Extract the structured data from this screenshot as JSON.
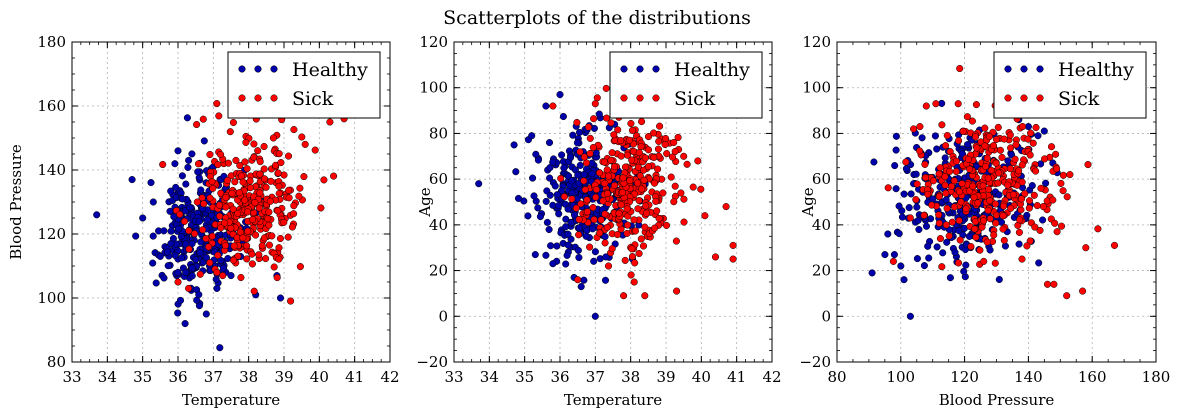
{
  "title": "Scatterplots of the distributions",
  "colors": {
    "healthy": "#0000aa",
    "sick": "#ff0000",
    "edge": "#000000"
  },
  "chart_data": [
    {
      "type": "scatter",
      "xlabel": "Temperature",
      "ylabel": "Blood Pressure",
      "xlim": [
        33,
        42
      ],
      "ylim": [
        80,
        180
      ],
      "xticks": [
        "33",
        "34",
        "35",
        "36",
        "37",
        "38",
        "39",
        "40",
        "41",
        "42"
      ],
      "yticks": [
        "80",
        "100",
        "120",
        "140",
        "160",
        "180"
      ],
      "grid": true,
      "legend": "top-right",
      "series": [
        {
          "name": "Healthy",
          "color": "#0000aa",
          "cluster": {
            "x_mean": 36.6,
            "x_sd": 0.62,
            "y_mean": 120,
            "y_sd": 10,
            "n": 300
          },
          "points": [
            [
              33.7,
              126
            ],
            [
              34.7,
              137
            ],
            [
              35.0,
              125
            ],
            [
              35.3,
              130
            ],
            [
              35.6,
              121
            ],
            [
              36.0,
              146
            ],
            [
              36.3,
              143
            ],
            [
              36.2,
              92
            ],
            [
              36.8,
              95
            ],
            [
              37.1,
              103
            ],
            [
              37.5,
              107
            ],
            [
              38.2,
              101
            ],
            [
              38.8,
              107
            ],
            [
              38.9,
              100
            ],
            [
              35.8,
              117
            ],
            [
              36.5,
              112
            ],
            [
              36.0,
              108
            ],
            [
              35.5,
              113
            ],
            [
              37.3,
              138
            ],
            [
              36.7,
              128
            ]
          ]
        },
        {
          "name": "Sick",
          "color": "#ff0000",
          "cluster": {
            "x_mean": 38.0,
            "x_sd": 0.75,
            "y_mean": 128,
            "y_sd": 11,
            "n": 330
          },
          "points": [
            [
              36.0,
              105
            ],
            [
              36.3,
              103
            ],
            [
              37.6,
              158
            ],
            [
              38.2,
              165
            ],
            [
              40.3,
              155
            ],
            [
              40.7,
              156
            ],
            [
              41.0,
              158
            ],
            [
              40.9,
              163
            ],
            [
              37.1,
              108
            ],
            [
              39.6,
              148
            ],
            [
              38.7,
              150
            ],
            [
              36.9,
              111
            ]
          ]
        }
      ]
    },
    {
      "type": "scatter",
      "xlabel": "Temperature",
      "ylabel": "Age",
      "xlim": [
        33,
        42
      ],
      "ylim": [
        -20,
        120
      ],
      "xticks": [
        "33",
        "34",
        "35",
        "36",
        "37",
        "38",
        "39",
        "40",
        "41",
        "42"
      ],
      "yticks": [
        "−20",
        "0",
        "20",
        "40",
        "60",
        "80",
        "100",
        "120"
      ],
      "grid": true,
      "legend": "top-right",
      "series": [
        {
          "name": "Healthy",
          "color": "#0000aa",
          "cluster": {
            "x_mean": 36.6,
            "x_sd": 0.62,
            "y_mean": 52,
            "y_sd": 14,
            "n": 300
          },
          "points": [
            [
              33.7,
              58
            ],
            [
              34.7,
              75
            ],
            [
              35.2,
              79
            ],
            [
              35.6,
              92
            ],
            [
              36.0,
              97
            ],
            [
              37.0,
              0
            ],
            [
              35.3,
              27
            ],
            [
              35.8,
              23
            ],
            [
              36.4,
              17
            ],
            [
              36.6,
              13
            ],
            [
              37.3,
              26
            ]
          ]
        },
        {
          "name": "Sick",
          "color": "#ff0000",
          "cluster": {
            "x_mean": 38.0,
            "x_sd": 0.75,
            "y_mean": 58,
            "y_sd": 14,
            "n": 330
          },
          "points": [
            [
              35.8,
              92
            ],
            [
              37.0,
              93
            ],
            [
              37.8,
              9
            ],
            [
              38.1,
              15
            ],
            [
              39.3,
              11
            ],
            [
              40.4,
              26
            ],
            [
              40.9,
              31
            ],
            [
              40.9,
              25
            ],
            [
              40.7,
              48
            ],
            [
              40.1,
              44
            ],
            [
              39.5,
              70
            ],
            [
              39.9,
              68
            ],
            [
              36.5,
              16
            ],
            [
              38.4,
              9
            ]
          ]
        }
      ]
    },
    {
      "type": "scatter",
      "xlabel": "Blood Pressure",
      "ylabel": "Age",
      "xlim": [
        80,
        180
      ],
      "ylim": [
        -20,
        120
      ],
      "xticks": [
        "80",
        "100",
        "120",
        "140",
        "160",
        "180"
      ],
      "yticks": [
        "−20",
        "0",
        "20",
        "40",
        "60",
        "80",
        "100",
        "120"
      ],
      "grid": true,
      "legend": "top-right",
      "series": [
        {
          "name": "Healthy",
          "color": "#0000aa",
          "cluster": {
            "x_mean": 120,
            "x_sd": 10,
            "y_mean": 52,
            "y_sd": 14,
            "n": 300
          },
          "points": [
            [
              91,
              19
            ],
            [
              95,
              27
            ],
            [
              98,
              27
            ],
            [
              100,
              22
            ],
            [
              101,
              16
            ],
            [
              103,
              0
            ],
            [
              104,
              58
            ],
            [
              108,
              60
            ],
            [
              140,
              83
            ],
            [
              145,
              81
            ],
            [
              137,
              86
            ],
            [
              143,
              79
            ],
            [
              117,
              28
            ]
          ]
        },
        {
          "name": "Sick",
          "color": "#ff0000",
          "cluster": {
            "x_mean": 128,
            "x_sd": 11,
            "y_mean": 58,
            "y_sd": 14,
            "n": 330
          },
          "points": [
            [
              108,
              92
            ],
            [
              111,
              93
            ],
            [
              118,
              93
            ],
            [
              167,
              31
            ],
            [
              158,
              30
            ],
            [
              157,
              11
            ],
            [
              152,
              9
            ],
            [
              148,
              14
            ],
            [
              146,
              14
            ],
            [
              153,
              62
            ],
            [
              149,
              37
            ],
            [
              142,
              39
            ],
            [
              138,
              25
            ],
            [
              126,
              24
            ],
            [
              104,
              82
            ],
            [
              106,
              83
            ]
          ]
        }
      ]
    }
  ]
}
